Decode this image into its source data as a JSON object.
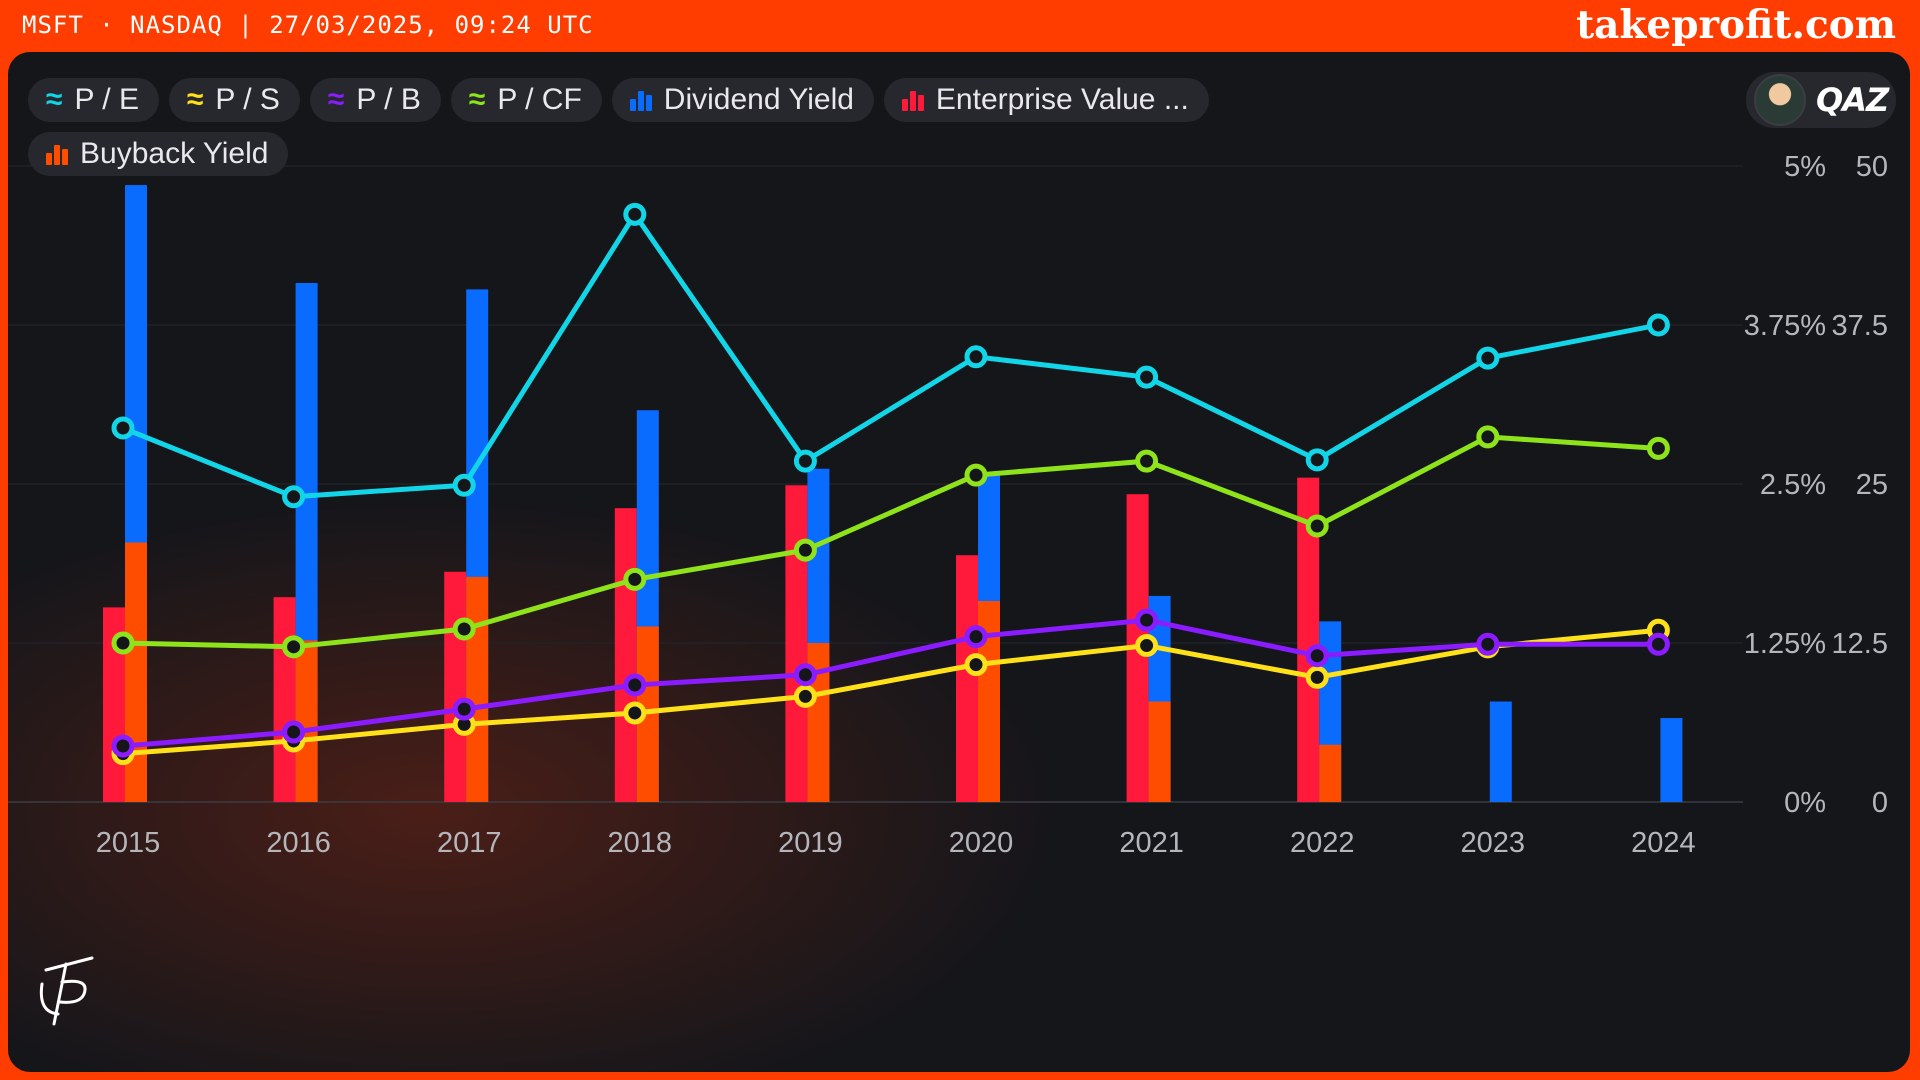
{
  "header": {
    "ticker_info": "MSFT · NASDAQ | 27/03/2025, 09:24 UTC",
    "brand": "takeprofit.com"
  },
  "user": {
    "name": "QAZ"
  },
  "legend": [
    {
      "label": "P / E",
      "kind": "line",
      "color": "#12d6e8"
    },
    {
      "label": "P / S",
      "kind": "line",
      "color": "#ffe11a"
    },
    {
      "label": "P / B",
      "kind": "line",
      "color": "#8a1cff"
    },
    {
      "label": "P / CF",
      "kind": "line",
      "color": "#8fe31b"
    },
    {
      "label": "Dividend Yield",
      "kind": "bar",
      "color": "#0a6bff"
    },
    {
      "label": "Enterprise Value ...",
      "kind": "bar",
      "color": "#ff1a3c"
    },
    {
      "label": "Buyback Yield",
      "kind": "bar",
      "color": "#ff4d00"
    }
  ],
  "chart_data": {
    "type": "bar+line",
    "categories": [
      "2015",
      "2016",
      "2017",
      "2018",
      "2019",
      "2020",
      "2021",
      "2022",
      "2023",
      "2024"
    ],
    "left_axis": {
      "ticks": [
        "5%",
        "3.75%",
        "2.5%",
        "1.25%",
        "0%"
      ],
      "range": [
        0,
        5
      ],
      "unit": "%"
    },
    "right_axis": {
      "ticks": [
        "50",
        "37.5",
        "25",
        "12.5",
        "0"
      ],
      "range": [
        0,
        50
      ]
    },
    "bar_series": [
      {
        "name": "Enterprise Value ...",
        "color": "#ff1a3c",
        "axis": "left",
        "values": [
          1.53,
          1.61,
          1.81,
          2.31,
          2.49,
          1.94,
          2.42,
          2.55,
          null,
          null
        ]
      },
      {
        "name": "Dividend Yield",
        "color": "#0a6bff",
        "axis": "left",
        "values": [
          4.85,
          4.08,
          4.03,
          3.08,
          2.62,
          2.57,
          1.62,
          1.42,
          0.79,
          0.66
        ]
      },
      {
        "name": "Buyback Yield",
        "color": "#ff4d00",
        "axis": "left",
        "values": [
          2.04,
          1.27,
          1.77,
          1.38,
          1.25,
          1.58,
          0.79,
          0.45,
          0,
          0
        ]
      }
    ],
    "line_series": [
      {
        "name": "P / E",
        "color": "#12d6e8",
        "axis": "right",
        "values": [
          29.4,
          24.0,
          24.9,
          46.2,
          26.8,
          35.0,
          33.4,
          26.9,
          34.9,
          37.5
        ]
      },
      {
        "name": "P / CF",
        "color": "#8fe31b",
        "axis": "right",
        "values": [
          12.5,
          12.2,
          13.6,
          17.5,
          19.8,
          25.7,
          26.8,
          21.7,
          28.7,
          27.8
        ]
      },
      {
        "name": "P / B",
        "color": "#8a1cff",
        "axis": "right",
        "values": [
          4.4,
          5.5,
          7.3,
          9.2,
          10.0,
          13.0,
          14.3,
          11.5,
          12.4,
          12.4
        ]
      },
      {
        "name": "P / S",
        "color": "#ffe11a",
        "axis": "right",
        "values": [
          3.8,
          4.8,
          6.1,
          7.0,
          8.3,
          10.8,
          12.3,
          9.8,
          12.2,
          13.5
        ]
      }
    ]
  }
}
